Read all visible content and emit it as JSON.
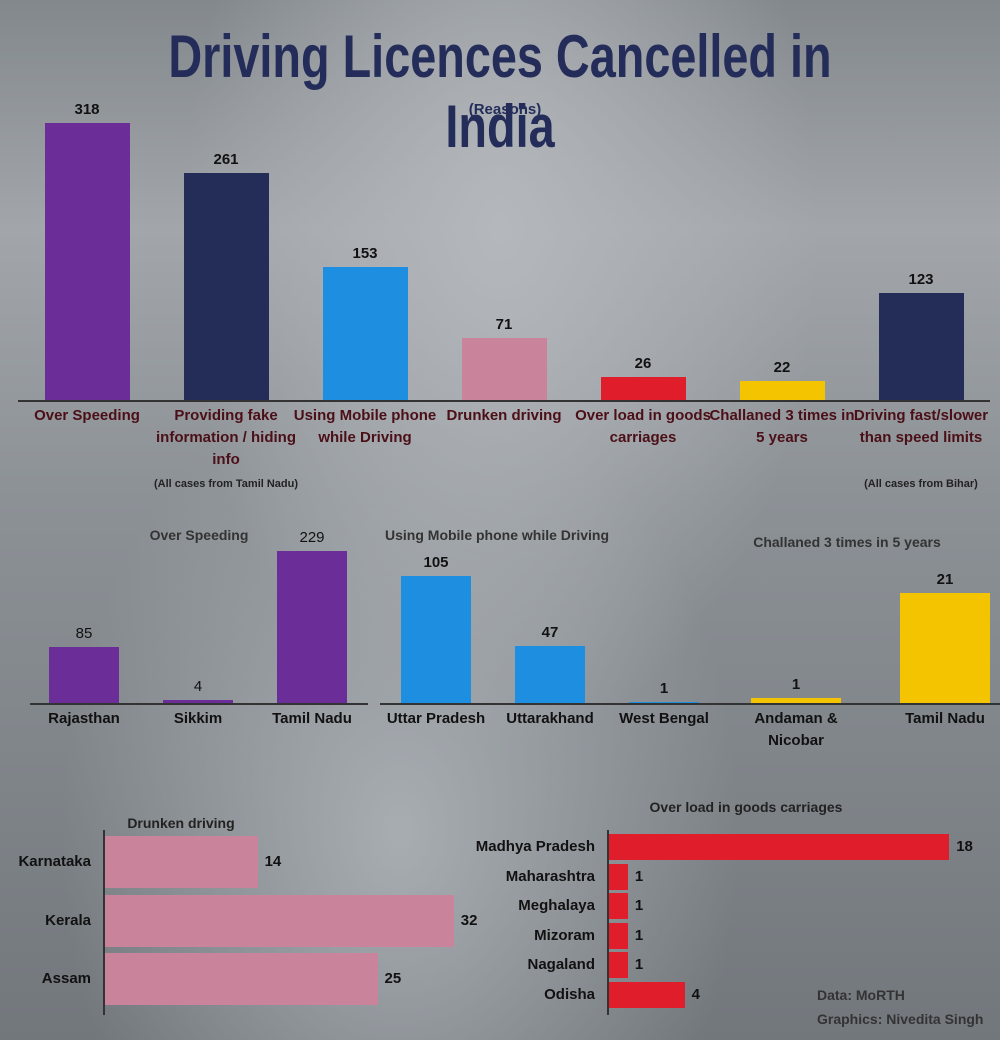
{
  "chart_data": [
    {
      "type": "bar",
      "title": "Driving Licences Cancelled in India",
      "subtitle": "(Reasons)",
      "categories": [
        "Over Speeding",
        "Providing fake information / hiding info",
        "Using Mobile phone while Driving",
        "Drunken driving",
        "Over load in goods carriages",
        "Challaned 3 times in 5 years",
        "Driving fast/slower than speed limits"
      ],
      "values": [
        318,
        261,
        153,
        71,
        26,
        22,
        123
      ],
      "colors": [
        "#6b2d98",
        "#232d58",
        "#1e8ee0",
        "#c9849c",
        "#e01e2b",
        "#f5c400",
        "#232d58"
      ],
      "annotations": [
        {
          "text": "(All cases from Tamil Nadu)",
          "category": "Providing fake information / hiding info"
        },
        {
          "text": "(All cases from Bihar)",
          "category": "Driving fast/slower than speed limits"
        }
      ]
    },
    {
      "type": "bar",
      "title": "Over Speeding",
      "categories": [
        "Rajasthan",
        "Sikkim",
        "Tamil Nadu"
      ],
      "values": [
        85,
        4,
        229
      ],
      "color": "#6b2d98"
    },
    {
      "type": "bar",
      "title": "Using Mobile phone while Driving",
      "categories": [
        "Uttar Pradesh",
        "Uttarakhand",
        "West Bengal"
      ],
      "values": [
        105,
        47,
        1
      ],
      "color": "#1e8ee0"
    },
    {
      "type": "bar",
      "title": "Challaned 3 times in 5 years",
      "categories": [
        "Andaman & Nicobar",
        "Tamil Nadu"
      ],
      "values": [
        1,
        21
      ],
      "color": "#f5c400"
    },
    {
      "type": "barh",
      "title": "Drunken driving",
      "categories": [
        "Karnataka",
        "Kerala",
        "Assam"
      ],
      "values": [
        14,
        32,
        25
      ],
      "color": "#c9849c"
    },
    {
      "type": "barh",
      "title": "Over load in goods carriages",
      "categories": [
        "Madhya Pradesh",
        "Maharashtra",
        "Meghalaya",
        "Mizoram",
        "Nagaland",
        "Odisha"
      ],
      "values": [
        18,
        1,
        1,
        1,
        1,
        4
      ],
      "color": "#e01e2b"
    }
  ],
  "credits": {
    "data": "Data: MoRTH",
    "graphics": "Graphics: Nivedita Singh"
  }
}
